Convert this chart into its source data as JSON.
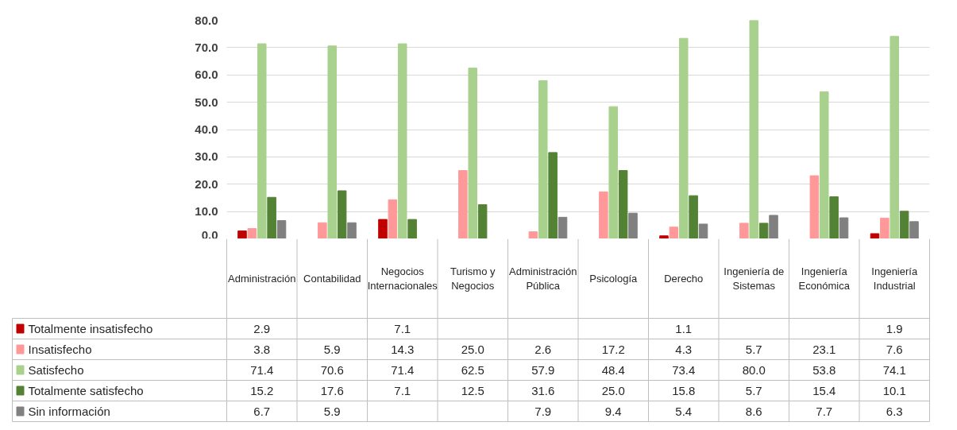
{
  "chart_data": {
    "type": "bar",
    "categories": [
      "Administración",
      "Contabilidad",
      "Negocios Internacionales",
      "Turismo y Negocios",
      "Administración Pública",
      "Psicología",
      "Derecho",
      "Ingeniería de Sistemas",
      "Ingeniería Económica",
      "Ingeniería Industrial"
    ],
    "series": [
      {
        "name": "Totalmente insatisfecho",
        "color": "#c00000",
        "values": [
          2.9,
          null,
          7.1,
          null,
          null,
          null,
          1.1,
          null,
          null,
          1.9
        ],
        "value_labels": [
          "2.9",
          null,
          "7.1",
          null,
          null,
          null,
          "1.1",
          null,
          null,
          "1.9"
        ]
      },
      {
        "name": "Insatisfecho",
        "color": "#ff9999",
        "values": [
          3.8,
          5.9,
          14.3,
          25.0,
          2.6,
          17.2,
          4.3,
          5.7,
          23.1,
          7.6
        ],
        "value_labels": [
          "3.8",
          "5.9",
          "14.3",
          "25.0",
          "2.6",
          "17.2",
          "4.3",
          "5.7",
          "23.1",
          "7.6"
        ]
      },
      {
        "name": "Satisfecho",
        "color": "#a9d18e",
        "values": [
          71.4,
          70.6,
          71.4,
          62.5,
          57.9,
          48.4,
          73.4,
          80.0,
          53.8,
          74.1
        ],
        "value_labels": [
          "71.4",
          "70.6",
          "71.4",
          "62.5",
          "57.9",
          "48.4",
          "73.4",
          "80.0",
          "53.8",
          "74.1"
        ]
      },
      {
        "name": "Totalmente satisfecho",
        "color": "#548235",
        "values": [
          15.2,
          17.6,
          7.1,
          12.5,
          31.6,
          25.0,
          15.8,
          5.7,
          15.4,
          10.1
        ],
        "value_labels": [
          "15.2",
          "17.6",
          "7.1",
          "12.5",
          "31.6",
          "25.0",
          "15.8",
          "5.7",
          "15.4",
          "10.1"
        ]
      },
      {
        "name": "Sin información",
        "color": "#808080",
        "values": [
          6.7,
          5.9,
          null,
          null,
          7.9,
          9.4,
          5.4,
          8.6,
          7.7,
          6.3
        ],
        "value_labels": [
          "6.7",
          "5.9",
          null,
          null,
          "7.9",
          "9.4",
          "5.4",
          "8.6",
          "7.7",
          "6.3"
        ]
      }
    ],
    "ylim": [
      0,
      80
    ],
    "yticks": [
      {
        "value": 0,
        "label": "0.0"
      },
      {
        "value": 10,
        "label": "10.0"
      },
      {
        "value": 20,
        "label": "20.0"
      },
      {
        "value": 30,
        "label": "30.0"
      },
      {
        "value": 40,
        "label": "40.0"
      },
      {
        "value": 50,
        "label": "50.0"
      },
      {
        "value": 60,
        "label": "60.0"
      },
      {
        "value": 70,
        "label": "70.0"
      },
      {
        "value": 80,
        "label": "80.0"
      }
    ],
    "grid": "y",
    "legend": "bottom"
  }
}
